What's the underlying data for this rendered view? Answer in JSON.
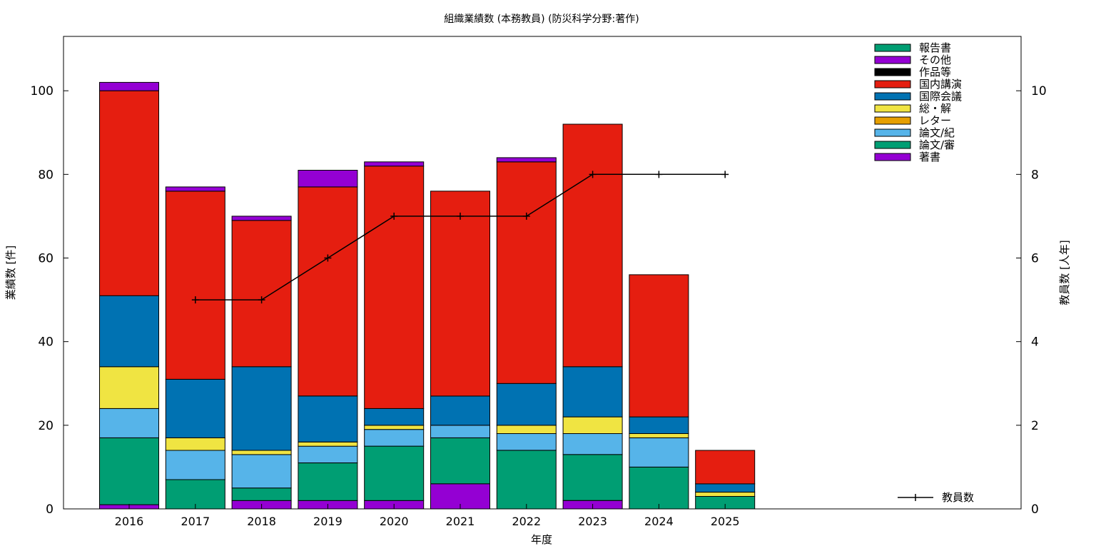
{
  "chart_data": {
    "type": "bar",
    "stacked": true,
    "title": "組織業績数 (本務教員) (防災科学分野:著作)",
    "xlabel": "年度",
    "ylabel": "業績数 [件]",
    "y2label": "教員数 [人年]",
    "categories": [
      "2016",
      "2017",
      "2018",
      "2019",
      "2020",
      "2021",
      "2022",
      "2023",
      "2024",
      "2025"
    ],
    "ylim": [
      0,
      113
    ],
    "yticks": [
      0,
      20,
      40,
      60,
      80,
      100
    ],
    "y2lim": [
      0,
      11.3
    ],
    "y2ticks": [
      0,
      2,
      4,
      6,
      8,
      10
    ],
    "legend_position": "top-right",
    "series": [
      {
        "name": "著書",
        "color": "#9400d3",
        "values": [
          1,
          0,
          2,
          2,
          2,
          6,
          0,
          2,
          0,
          0
        ]
      },
      {
        "name": "論文/審",
        "color": "#009e73",
        "values": [
          16,
          7,
          3,
          9,
          13,
          11,
          14,
          11,
          10,
          3
        ]
      },
      {
        "name": "論文/紀",
        "color": "#56b4e9",
        "values": [
          7,
          7,
          8,
          4,
          4,
          3,
          4,
          5,
          7,
          0
        ]
      },
      {
        "name": "レター",
        "color": "#e69f00",
        "values": [
          0,
          0,
          0,
          0,
          0,
          0,
          0,
          0,
          0,
          0
        ]
      },
      {
        "name": "総・解",
        "color": "#f0e442",
        "values": [
          10,
          3,
          1,
          1,
          1,
          0,
          2,
          4,
          1,
          1
        ]
      },
      {
        "name": "国際会議",
        "color": "#0072b2",
        "values": [
          17,
          14,
          20,
          11,
          4,
          7,
          10,
          12,
          4,
          2
        ]
      },
      {
        "name": "国内講演",
        "color": "#e51e10",
        "values": [
          49,
          45,
          35,
          50,
          58,
          49,
          53,
          58,
          34,
          8
        ]
      },
      {
        "name": "作品等",
        "color": "#000000",
        "values": [
          0,
          0,
          0,
          0,
          0,
          0,
          0,
          0,
          0,
          0
        ]
      },
      {
        "name": "その他",
        "color": "#9400d3",
        "values": [
          2,
          1,
          1,
          4,
          1,
          0,
          1,
          0,
          0,
          0
        ]
      },
      {
        "name": "報告書",
        "color": "#009e73",
        "values": [
          0,
          0,
          0,
          0,
          0,
          0,
          0,
          0,
          0,
          0
        ]
      }
    ],
    "legend_order": [
      "報告書",
      "その他",
      "作品等",
      "国内講演",
      "国際会議",
      "総・解",
      "レター",
      "論文/紀",
      "論文/審",
      "著書"
    ],
    "line_series": {
      "name": "教員数",
      "axis": "y2",
      "categories": [
        "2017",
        "2018",
        "2019",
        "2020",
        "2021",
        "2022",
        "2023",
        "2024",
        "2025"
      ],
      "values": [
        5,
        5,
        6,
        7,
        7,
        7,
        8,
        8,
        8
      ]
    }
  }
}
